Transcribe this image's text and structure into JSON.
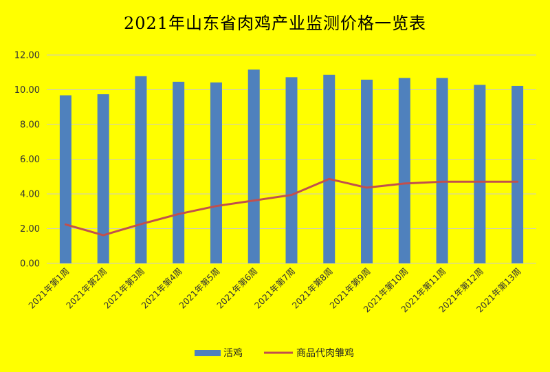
{
  "chart_data": {
    "type": "bar",
    "title": "2021年山东省肉鸡产业监测价格一览表",
    "xlabel": "",
    "ylabel": "",
    "ylim": [
      0,
      12
    ],
    "yticks": [
      "0.00",
      "2.00",
      "4.00",
      "6.00",
      "8.00",
      "10.00",
      "12.00"
    ],
    "grid": true,
    "legend_position": "bottom",
    "categories": [
      "2021年第1周",
      "2021年第2周",
      "2021年第3周",
      "2021年第4周",
      "2021年第5周",
      "2021年第6周",
      "2021年第7周",
      "2021年第8周",
      "2021年第9周",
      "2021年第10周",
      "2021年第11周",
      "2021年第12周",
      "2021年第13周"
    ],
    "series": [
      {
        "name": "活鸡",
        "type": "bar",
        "color": "#4F81BD",
        "values": [
          9.68,
          9.74,
          10.78,
          10.46,
          10.42,
          11.16,
          10.72,
          10.86,
          10.58,
          10.68,
          10.68,
          10.28,
          10.22
        ]
      },
      {
        "name": "商品代肉雏鸡",
        "type": "line",
        "color": "#C0504D",
        "values": [
          2.24,
          1.62,
          2.26,
          2.84,
          3.3,
          3.62,
          3.94,
          4.86,
          4.36,
          4.6,
          4.7,
          4.7,
          4.7
        ]
      }
    ],
    "background_color": "#FFFF00",
    "gridline_color": "#C8C8C8"
  }
}
